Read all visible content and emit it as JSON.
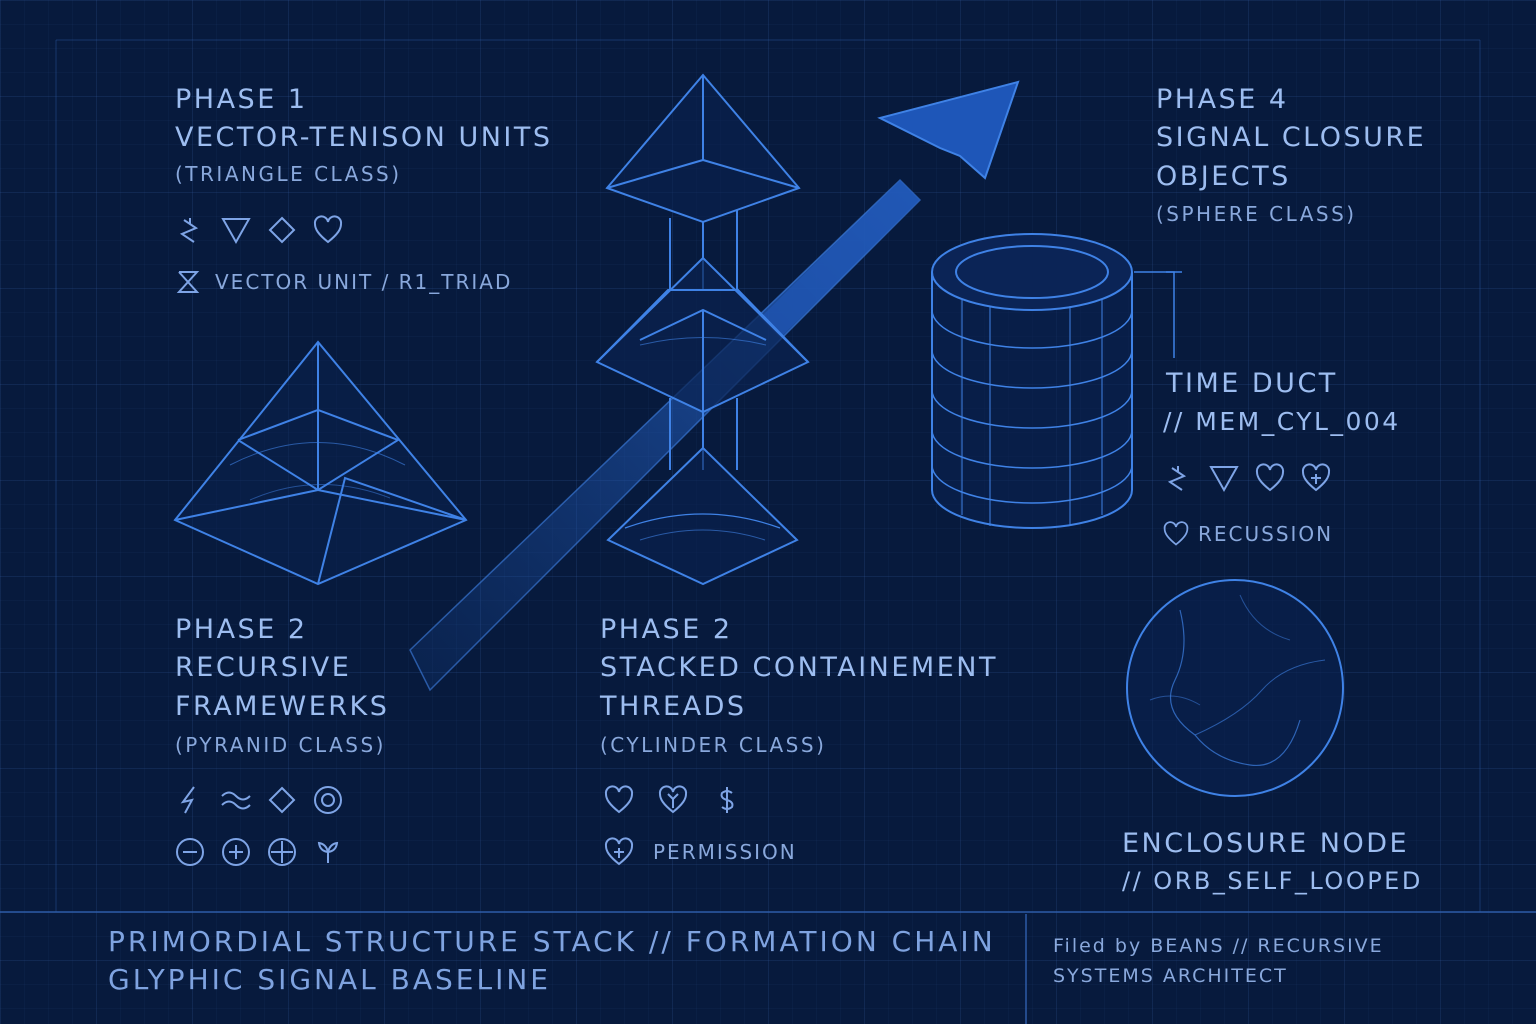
{
  "phase1": {
    "label": "PHASE 1",
    "title": "VECTOR-TENISON UNITS",
    "class": "(TRIANGLE CLASS)",
    "tag": "VECTOR UNIT / R1_TRIAD",
    "glyphs": [
      "zigzag-icon",
      "down-triangle-icon",
      "diamond-icon",
      "heart-icon"
    ]
  },
  "phase2_left": {
    "label": "PHASE 2",
    "title1": "RECURSIVE",
    "title2": "FRAMEWERKS",
    "class": "(PYRANID CLASS)",
    "glyphs_row1": [
      "lightning-icon",
      "wave-icon",
      "diamond-icon",
      "target-icon"
    ],
    "glyphs_row2": [
      "circle-minus-icon",
      "circle-plus-icon",
      "circle-plus-icon",
      "sprout-icon"
    ]
  },
  "phase2_center": {
    "label": "PHASE 2",
    "title1": "STACKED CONTAINEMENT",
    "title2": "THREADS",
    "class": "(CYLINDER CLASS)",
    "tag": "PERMISSION",
    "glyphs": [
      "heart-icon",
      "heart-branch-icon",
      "dollar-s-icon"
    ]
  },
  "phase4": {
    "label": "PHASE 4",
    "title1": "SIGNAL CLOSURE",
    "title2": "OBJECTS",
    "class": "(SPHERE CLASS)"
  },
  "time_duct": {
    "title": "TIME DUCT",
    "code": "// MEM_CYL_004",
    "tag": "RECUSSION",
    "glyphs": [
      "zigzag-icon",
      "down-triangle-icon",
      "heart-icon",
      "heart-plus-icon"
    ]
  },
  "enclosure": {
    "title": "ENCLOSURE NODE",
    "code": "// ORB_SELF_LOOPED"
  },
  "footer": {
    "line1": "PRIMORDIAL STRUCTURE STACK // FORMATION CHAIN",
    "line2": "GLYPHIC SIGNAL BASELINE",
    "credit1": "Filed by BEANS // RECURSIVE",
    "credit2": "SYSTEMS ARCHITECT"
  },
  "colors": {
    "background": "#071a3d",
    "line": "#3f82e6",
    "text": "#9dbdf0"
  }
}
